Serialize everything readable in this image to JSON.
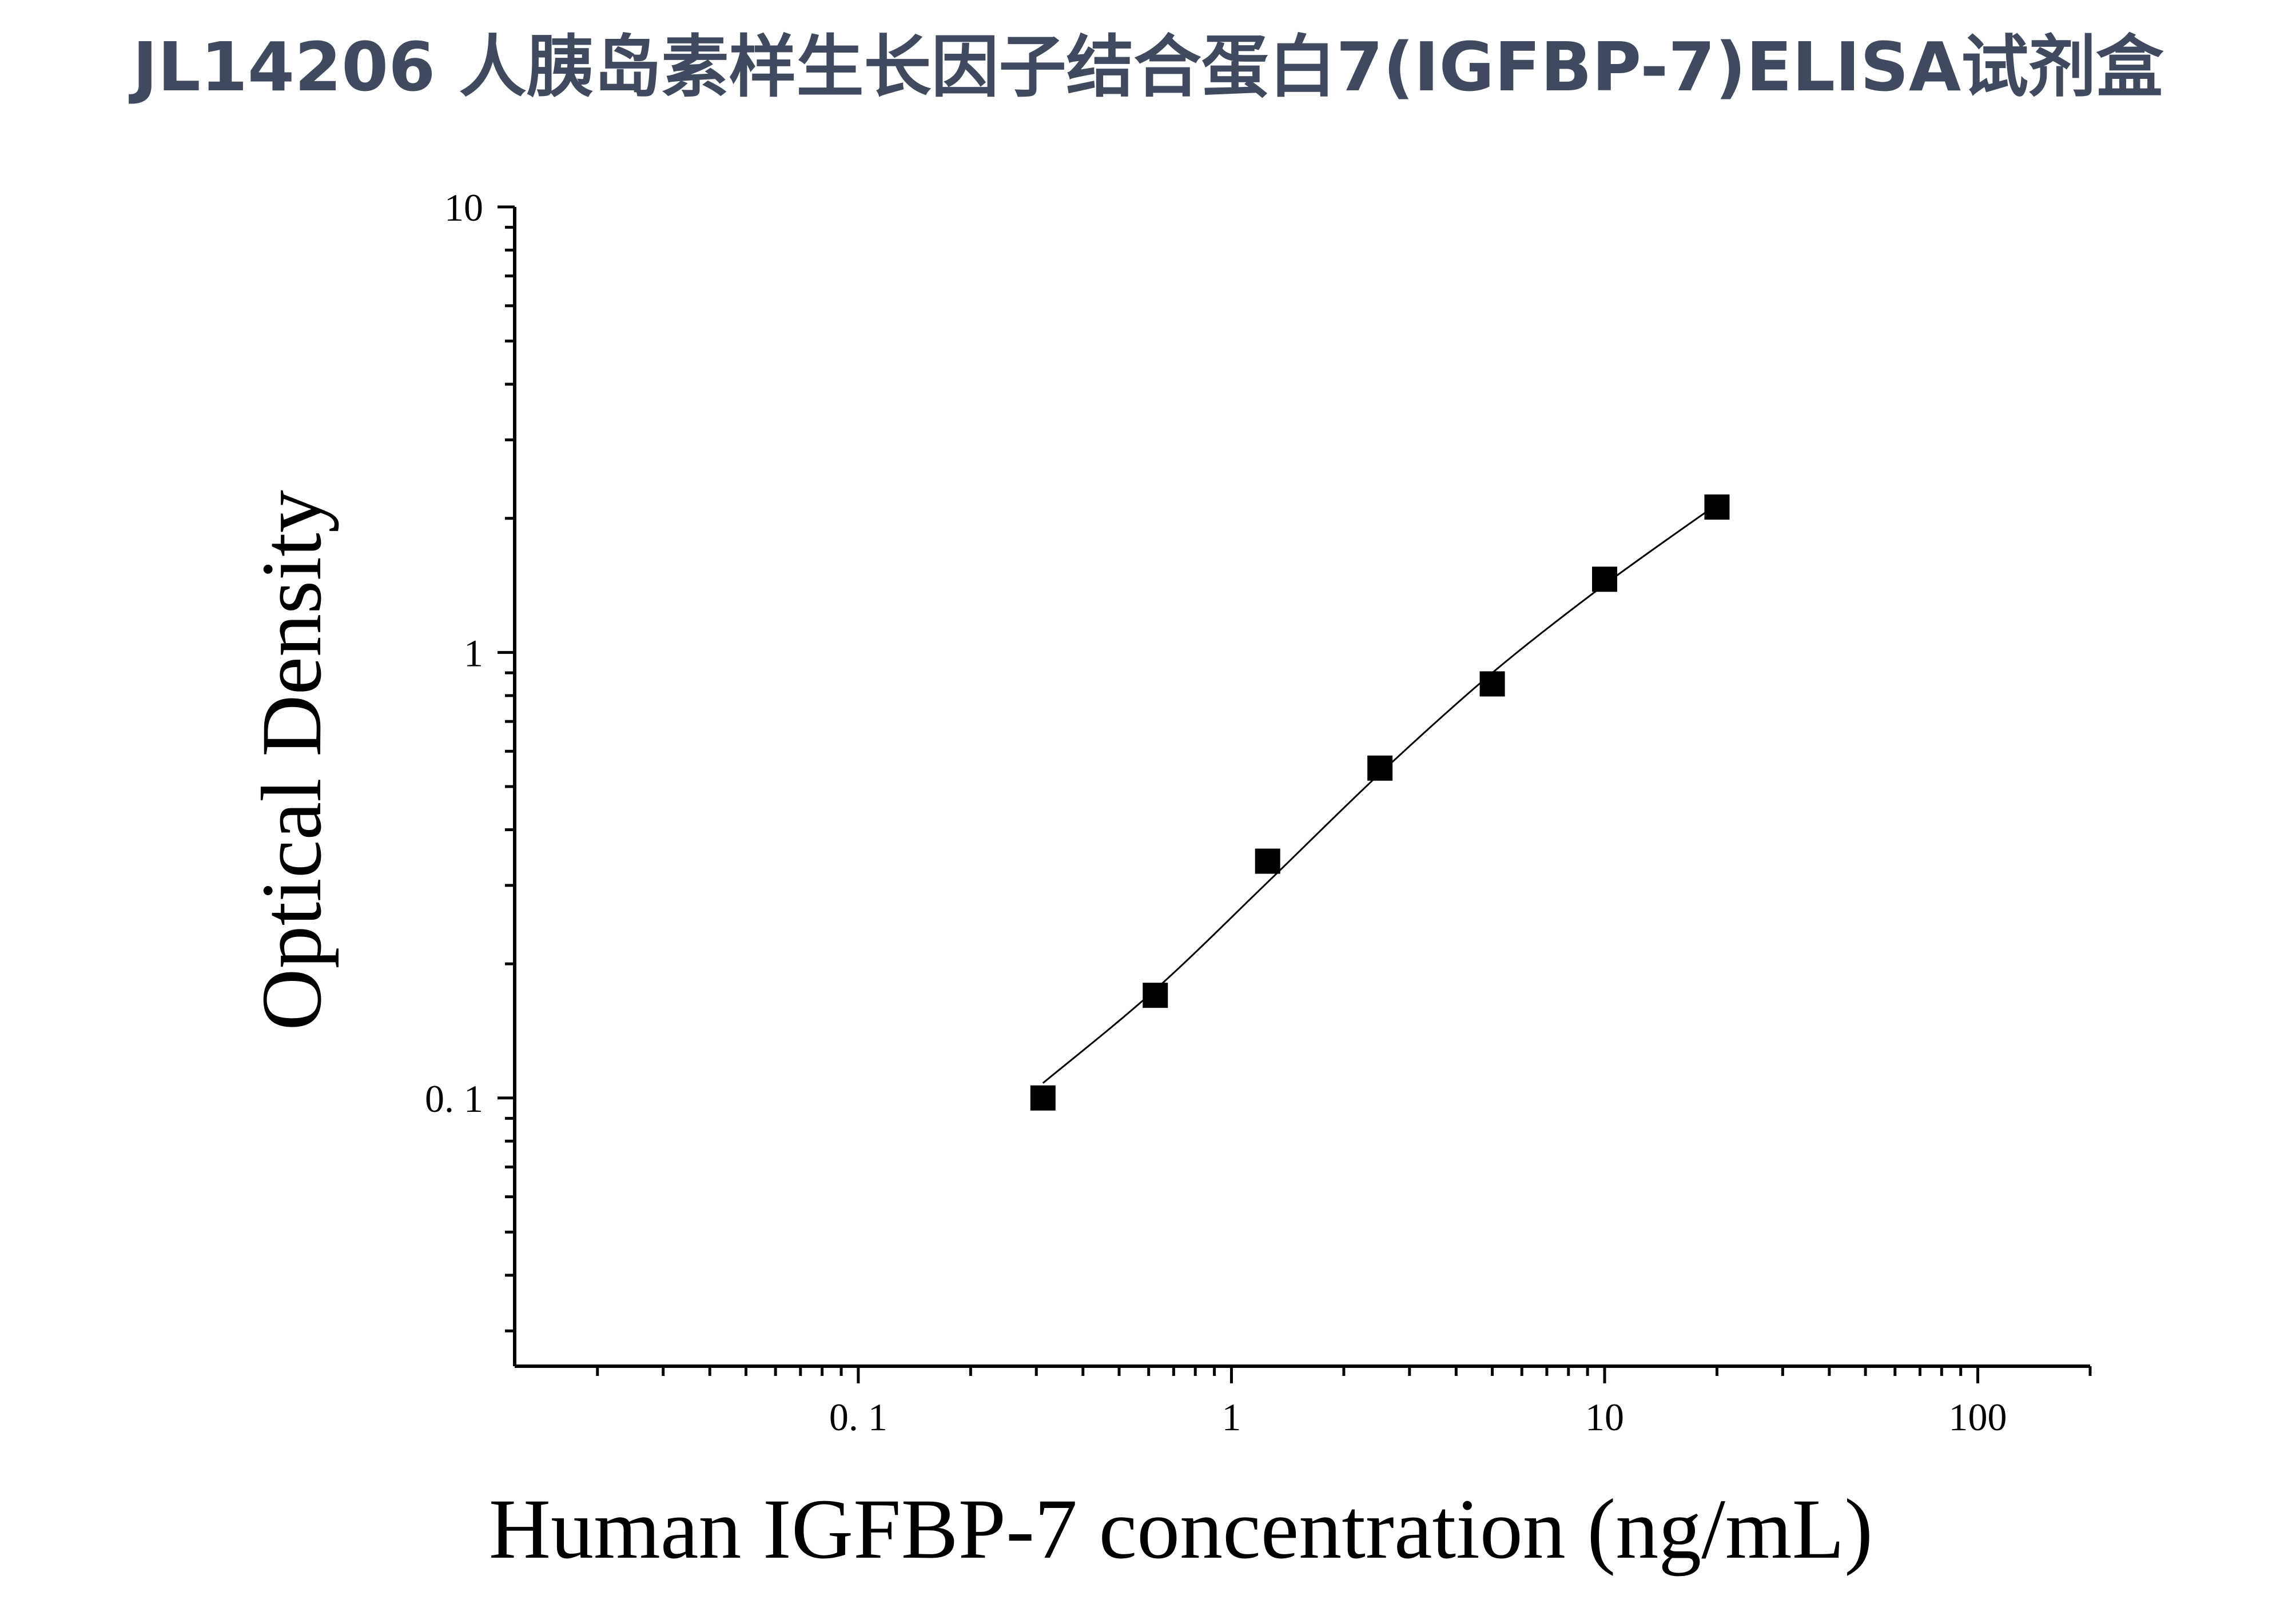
{
  "title": "JL14206 人胰岛素样生长因子结合蛋白7(IGFBP-7)ELISA试剂盒",
  "chart_data": {
    "type": "scatter",
    "xlabel": "Human IGFBP-7 concentration (ng/mL)",
    "ylabel": "Optical Density",
    "x_scale": "log",
    "y_scale": "log",
    "xlim": [
      0.012,
      200
    ],
    "ylim": [
      0.025,
      10
    ],
    "x_ticks": [
      {
        "value": 0.1,
        "label": "0. 1"
      },
      {
        "value": 1,
        "label": "1"
      },
      {
        "value": 10,
        "label": "10"
      },
      {
        "value": 100,
        "label": "100"
      }
    ],
    "y_ticks": [
      {
        "value": 0.1,
        "label": "0. 1"
      },
      {
        "value": 1,
        "label": "1"
      },
      {
        "value": 10,
        "label": "10"
      }
    ],
    "grid": false,
    "series": [
      {
        "marker": "square",
        "color": "#000000",
        "x": [
          0.3125,
          0.625,
          1.25,
          2.5,
          5,
          10,
          20
        ],
        "y": [
          0.1,
          0.17,
          0.34,
          0.55,
          0.85,
          1.46,
          2.12
        ]
      }
    ],
    "fit_curve": {
      "type": "line",
      "color": "#000000",
      "x": [
        0.3125,
        0.625,
        1.25,
        2.5,
        5,
        10,
        20
      ],
      "y": [
        0.108,
        0.175,
        0.305,
        0.535,
        0.9,
        1.42,
        2.15
      ]
    }
  }
}
